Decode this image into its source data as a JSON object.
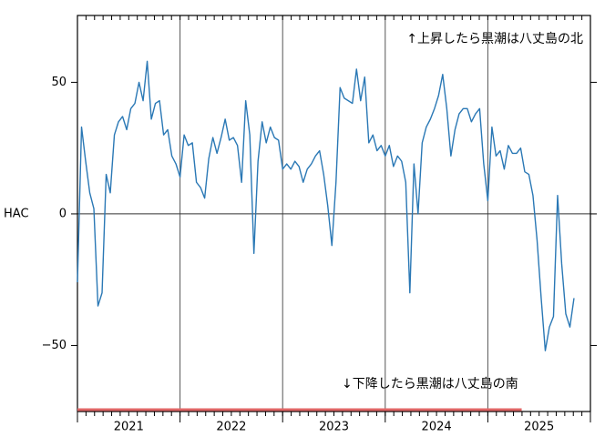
{
  "chart_data": {
    "type": "line",
    "ylabel": "HAC",
    "annotations": [
      "↑上昇したら黒潮は八丈島の北",
      "↓下降したら黒潮は八丈島の南"
    ],
    "xlim": [
      2021,
      2026
    ],
    "ylim": [
      -75.1,
      75.4
    ],
    "xticks": [
      {
        "value": 2021.5,
        "label": "2021"
      },
      {
        "value": 2022.5,
        "label": "2022"
      },
      {
        "value": 2023.5,
        "label": "2023"
      },
      {
        "value": 2024.5,
        "label": "2024"
      },
      {
        "value": 2025.5,
        "label": "2025"
      }
    ],
    "xgrid": [
      2021,
      2022,
      2023,
      2024,
      2025,
      2026
    ],
    "minor_ticks_per_year": 12,
    "yticks": [
      {
        "value": 50,
        "label": "50"
      },
      {
        "value": 0,
        "label": "0"
      },
      {
        "value": -50,
        "label": "−50"
      }
    ],
    "zero_line": true,
    "series": [
      {
        "color": "#2a78b5",
        "x": [
          2021,
          2021.04,
          2021.08,
          2021.12,
          2021.16,
          2021.2,
          2021.24,
          2021.28,
          2021.32,
          2021.36,
          2021.4,
          2021.44,
          2021.48,
          2021.52,
          2021.56,
          2021.6,
          2021.64,
          2021.68,
          2021.72,
          2021.76,
          2021.8,
          2021.84,
          2021.88,
          2021.92,
          2021.96,
          2022,
          2022.04,
          2022.08,
          2022.12,
          2022.16,
          2022.2,
          2022.24,
          2022.28,
          2022.32,
          2022.36,
          2022.4,
          2022.44,
          2022.48,
          2022.52,
          2022.56,
          2022.6,
          2022.64,
          2022.68,
          2022.72,
          2022.76,
          2022.8,
          2022.84,
          2022.88,
          2022.92,
          2022.96,
          2023,
          2023.04,
          2023.08,
          2023.12,
          2023.16,
          2023.2,
          2023.24,
          2023.28,
          2023.32,
          2023.36,
          2023.4,
          2023.44,
          2023.48,
          2023.52,
          2023.56,
          2023.6,
          2023.64,
          2023.68,
          2023.72,
          2023.76,
          2023.8,
          2023.84,
          2023.88,
          2023.92,
          2023.96,
          2024,
          2024.04,
          2024.08,
          2024.12,
          2024.16,
          2024.2,
          2024.24,
          2024.28,
          2024.32,
          2024.36,
          2024.4,
          2024.44,
          2024.48,
          2024.52,
          2024.56,
          2024.6,
          2024.64,
          2024.68,
          2024.72,
          2024.76,
          2024.8,
          2024.84,
          2024.88,
          2024.92,
          2024.96,
          2025,
          2025.04,
          2025.08,
          2025.12,
          2025.16,
          2025.2,
          2025.24,
          2025.28,
          2025.32,
          2025.36,
          2025.4,
          2025.44,
          2025.48,
          2025.52,
          2025.56,
          2025.6,
          2025.64,
          2025.68,
          2025.72,
          2025.76,
          2025.8,
          2025.84
        ],
        "values": [
          -26,
          33,
          20,
          8,
          2,
          -35,
          -30,
          15,
          8,
          30,
          35,
          37,
          32,
          40,
          42,
          50,
          43,
          58,
          36,
          42,
          43,
          30,
          32,
          22,
          19,
          14,
          30,
          26,
          27,
          12,
          10,
          6,
          21,
          29,
          23,
          29,
          36,
          28,
          29,
          26,
          12,
          43,
          30,
          -15,
          20,
          35,
          27,
          33,
          29,
          28,
          17,
          19,
          17,
          20,
          18,
          12,
          17,
          19,
          22,
          24,
          15,
          3,
          -12,
          12,
          48,
          44,
          43,
          42,
          55,
          43,
          52,
          27,
          30,
          24,
          26,
          22,
          26,
          18,
          22,
          20,
          12,
          -30,
          19,
          0,
          27,
          33,
          36,
          40,
          45,
          53,
          40,
          22,
          32,
          38,
          40,
          40,
          35,
          38,
          40,
          19,
          5,
          33,
          22,
          24,
          17,
          26,
          23,
          23,
          25,
          16,
          15,
          7,
          -10,
          -32,
          -52,
          -43,
          -39,
          7,
          -19,
          -38,
          -43,
          -32
        ]
      },
      {
        "color": "#e06666",
        "x": [
          2021,
          2025.33
        ],
        "values": [
          -74.4,
          -74.4
        ]
      }
    ]
  }
}
